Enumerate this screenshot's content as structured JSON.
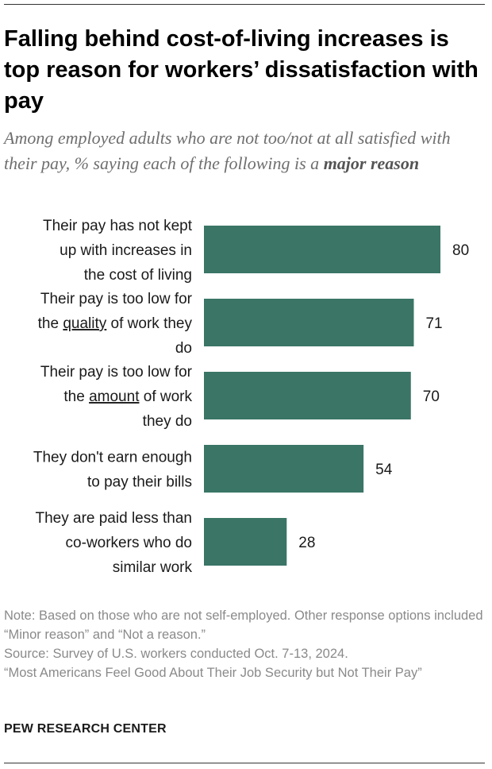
{
  "title": "Falling behind cost-of-living increases is top reason for workers’ dissatisfaction with pay",
  "subtitle_prefix": "Among employed adults who are not too/not at all satisfied with their pay, % saying each of the following is a ",
  "subtitle_emphasis": "major reason",
  "colors": {
    "bar": "#3a7566",
    "rule": "#333333",
    "note": "#8a8a8a"
  },
  "chart_data": {
    "type": "bar",
    "orientation": "horizontal",
    "title": "Falling behind cost-of-living increases is top reason for workers’ dissatisfaction with pay",
    "xlabel": "",
    "ylabel": "",
    "xlim": [
      0,
      80
    ],
    "grid": false,
    "categories": [
      "Their pay has not kept up with increases in the cost of living",
      "Their pay is too low for the quality of work they do",
      "Their pay is too low for the amount of work they do",
      "They don't earn enough to pay their bills",
      "They are paid less than co-workers who do similar work"
    ],
    "category_lines": [
      [
        [
          "Their pay has not kept"
        ],
        [
          "up with increases in"
        ],
        [
          "the cost of living"
        ]
      ],
      [
        [
          "Their pay is too low for"
        ],
        [
          "the ",
          "quality",
          " of work they"
        ],
        [
          "do"
        ]
      ],
      [
        [
          "Their pay is too low for"
        ],
        [
          "the ",
          "amount",
          " of work"
        ],
        [
          "they do"
        ]
      ],
      [
        [
          "They don't earn enough"
        ],
        [
          "to pay their bills"
        ]
      ],
      [
        [
          "They are paid less than"
        ],
        [
          "co-workers who do"
        ],
        [
          "similar work"
        ]
      ]
    ],
    "underlined_words": [
      "quality",
      "amount"
    ],
    "values": [
      80,
      71,
      70,
      54,
      28
    ],
    "value_labels": [
      "80",
      "71",
      "70",
      "54",
      "28"
    ]
  },
  "notes": {
    "note": "Note: Based on those who are not self-employed. Other response options included “Minor reason” and “Not a reason.”",
    "source": "Source: Survey of U.S. workers conducted Oct. 7-13, 2024.",
    "report": "“Most Americans Feel Good About Their Job Security but Not Their Pay”"
  },
  "brand": "PEW RESEARCH CENTER"
}
